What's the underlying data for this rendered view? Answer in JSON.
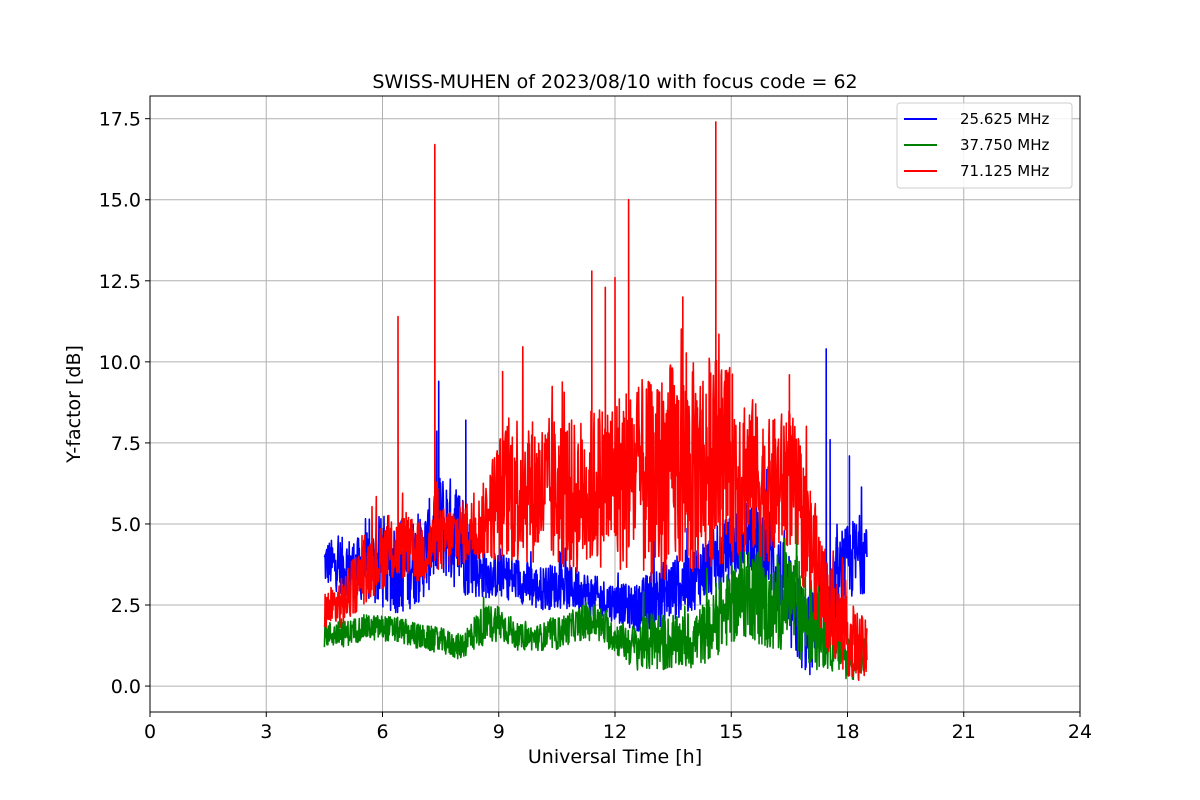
{
  "chart_data": {
    "type": "line",
    "title": "SWISS-MUHEN of 2023/08/10 with focus code = 62",
    "xlabel": "Universal Time [h]",
    "ylabel": "Y-factor [dB]",
    "xlim": [
      0,
      24
    ],
    "ylim": [
      -0.8,
      18.2
    ],
    "xticks": [
      0,
      3,
      6,
      9,
      12,
      15,
      18,
      21,
      24
    ],
    "xtick_labels": [
      "0",
      "3",
      "6",
      "9",
      "12",
      "15",
      "18",
      "21",
      "24"
    ],
    "yticks": [
      0.0,
      2.5,
      5.0,
      7.5,
      10.0,
      12.5,
      15.0,
      17.5
    ],
    "ytick_labels": [
      "0.0",
      "2.5",
      "5.0",
      "7.5",
      "10.0",
      "12.5",
      "15.0",
      "17.5"
    ],
    "grid": true,
    "legend_position": "top-right",
    "series": [
      {
        "name": "25.625 MHz",
        "color": "#0000ff",
        "x": [
          4.5,
          5.0,
          5.5,
          6.0,
          6.5,
          7.0,
          7.5,
          8.0,
          8.5,
          9.0,
          9.5,
          10.0,
          10.5,
          11.0,
          11.5,
          12.0,
          12.5,
          13.0,
          13.5,
          14.0,
          14.5,
          15.0,
          15.5,
          16.0,
          16.5,
          17.0,
          17.5,
          18.0,
          18.5
        ],
        "values": [
          3.8,
          3.7,
          3.6,
          3.8,
          3.7,
          3.9,
          5.0,
          4.6,
          3.5,
          3.4,
          3.3,
          3.0,
          3.1,
          3.0,
          2.7,
          2.6,
          2.4,
          2.7,
          3.0,
          3.3,
          3.8,
          4.3,
          4.8,
          4.2,
          2.5,
          1.5,
          2.5,
          3.8,
          4.2
        ],
        "band": [
          0.7,
          0.9,
          1.0,
          1.5,
          1.5,
          1.3,
          1.6,
          1.8,
          0.8,
          0.7,
          0.7,
          0.7,
          0.7,
          0.7,
          0.7,
          0.6,
          0.7,
          1.0,
          1.0,
          1.0,
          1.0,
          1.0,
          1.2,
          1.3,
          1.5,
          1.3,
          1.3,
          1.2,
          1.3
        ],
        "peaks": [
          {
            "x": 7.45,
            "y": 9.4
          },
          {
            "x": 8.15,
            "y": 8.2
          },
          {
            "x": 17.45,
            "y": 10.4
          },
          {
            "x": 17.55,
            "y": 7.6
          },
          {
            "x": 18.05,
            "y": 7.1
          }
        ]
      },
      {
        "name": "37.750 MHz",
        "color": "#008000",
        "x": [
          4.5,
          5.0,
          5.5,
          6.0,
          6.5,
          7.0,
          7.5,
          8.0,
          8.5,
          9.0,
          9.5,
          10.0,
          10.5,
          11.0,
          11.5,
          12.0,
          12.5,
          13.0,
          13.5,
          14.0,
          14.5,
          15.0,
          15.5,
          16.0,
          16.5,
          17.0,
          17.5,
          18.0,
          18.5
        ],
        "values": [
          1.6,
          1.6,
          1.8,
          1.8,
          1.7,
          1.5,
          1.4,
          1.2,
          1.8,
          2.0,
          1.5,
          1.5,
          1.6,
          1.9,
          2.0,
          1.5,
          1.2,
          1.4,
          1.3,
          1.4,
          1.8,
          2.5,
          3.0,
          2.2,
          2.8,
          2.0,
          1.5,
          0.9,
          0.9
        ],
        "band": [
          0.4,
          0.4,
          0.4,
          0.4,
          0.4,
          0.4,
          0.4,
          0.4,
          0.6,
          0.6,
          0.4,
          0.4,
          0.5,
          0.5,
          0.6,
          0.5,
          0.7,
          1.0,
          0.8,
          0.9,
          1.0,
          1.2,
          1.5,
          1.3,
          1.5,
          1.5,
          1.0,
          0.7,
          0.7
        ],
        "peaks": [
          {
            "x": 15.25,
            "y": 4.6
          },
          {
            "x": 16.7,
            "y": 4.0
          }
        ]
      },
      {
        "name": "71.125 MHz",
        "color": "#ff0000",
        "x": [
          4.5,
          5.0,
          5.5,
          6.0,
          6.5,
          7.0,
          7.5,
          8.0,
          8.5,
          9.0,
          9.5,
          10.0,
          10.5,
          11.0,
          11.5,
          12.0,
          12.5,
          13.0,
          13.5,
          14.0,
          14.5,
          15.0,
          15.5,
          16.0,
          16.5,
          17.0,
          17.5,
          18.0,
          18.5
        ],
        "values": [
          2.3,
          2.6,
          3.5,
          4.0,
          4.3,
          4.1,
          4.5,
          4.7,
          4.9,
          5.8,
          6.2,
          6.0,
          6.0,
          5.8,
          6.2,
          6.3,
          6.5,
          6.2,
          6.8,
          6.6,
          7.0,
          6.8,
          6.5,
          6.0,
          6.5,
          4.5,
          2.5,
          1.5,
          1.0
        ],
        "band": [
          0.6,
          0.8,
          1.0,
          1.0,
          1.0,
          1.0,
          1.0,
          1.0,
          1.0,
          2.0,
          2.5,
          2.2,
          2.4,
          2.4,
          2.5,
          2.8,
          3.0,
          3.2,
          3.3,
          3.4,
          3.3,
          3.0,
          2.5,
          2.2,
          2.2,
          2.0,
          1.5,
          1.2,
          1.0
        ],
        "peaks": [
          {
            "x": 6.4,
            "y": 11.4
          },
          {
            "x": 7.35,
            "y": 16.7
          },
          {
            "x": 9.1,
            "y": 9.7
          },
          {
            "x": 11.4,
            "y": 12.8
          },
          {
            "x": 11.75,
            "y": 12.3
          },
          {
            "x": 12.0,
            "y": 12.6
          },
          {
            "x": 12.35,
            "y": 15.0
          },
          {
            "x": 13.75,
            "y": 12.0
          },
          {
            "x": 14.6,
            "y": 17.4
          },
          {
            "x": 16.5,
            "y": 9.6
          }
        ]
      }
    ]
  }
}
